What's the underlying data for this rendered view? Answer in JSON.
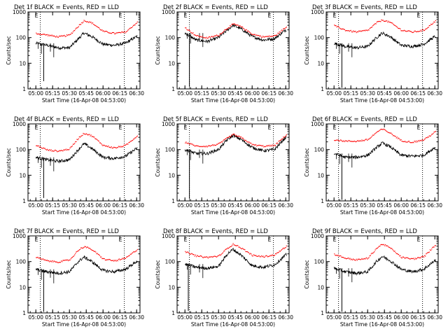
{
  "figure": {
    "xlabel": "Start Time (16-Apr-08 04:53:00)",
    "ylabel": "Counts/sec",
    "x_ticks": [
      "05:00",
      "05:15",
      "05:30",
      "05:45",
      "06:00",
      "06:15",
      "06:30"
    ],
    "y_ticks": [
      "1",
      "10",
      "100",
      "1000"
    ],
    "marker_labels": [
      "E",
      "E"
    ],
    "colors": {
      "events": "#000000",
      "lld": "#ff0000"
    }
  },
  "chart_data": [
    {
      "type": "line",
      "title": "Det 1f BLACK = Events, RED = LLD",
      "x": [
        "05:00",
        "05:10",
        "05:20",
        "05:30",
        "05:38",
        "05:43",
        "05:50",
        "06:00",
        "06:10",
        "06:20",
        "06:30"
      ],
      "series": [
        {
          "name": "Events",
          "values": [
            60,
            50,
            40,
            40,
            90,
            150,
            110,
            55,
            50,
            60,
            110
          ]
        },
        {
          "name": "LLD",
          "values": [
            150,
            130,
            110,
            130,
            300,
            480,
            380,
            180,
            150,
            170,
            400
          ]
        }
      ],
      "ylim": [
        1,
        1000
      ],
      "yscale": "log",
      "xlim": [
        "04:53",
        "06:33"
      ],
      "dotted_vlines": [
        "05:04",
        "06:19"
      ],
      "dropouts": [
        {
          "x": "05:07",
          "y": 2
        }
      ]
    },
    {
      "type": "line",
      "title": "Det 2f BLACK = Events, RED = LLD",
      "x": [
        "05:00",
        "05:10",
        "05:20",
        "05:30",
        "05:38",
        "05:43",
        "05:50",
        "06:00",
        "06:10",
        "06:20",
        "06:30"
      ],
      "series": [
        {
          "name": "Events",
          "values": [
            150,
            80,
            70,
            100,
            200,
            300,
            220,
            110,
            80,
            90,
            200
          ]
        },
        {
          "name": "LLD",
          "values": [
            250,
            120,
            100,
            130,
            250,
            350,
            270,
            140,
            110,
            120,
            260
          ]
        }
      ],
      "ylim": [
        1,
        1000
      ],
      "yscale": "log",
      "xlim": [
        "04:53",
        "06:33"
      ],
      "dotted_vlines": [
        "05:04",
        "06:19"
      ],
      "dropouts": [
        {
          "x": "05:04",
          "y": 1.2
        }
      ]
    },
    {
      "type": "line",
      "title": "Det 3f BLACK = Events, RED = LLD",
      "x": [
        "05:00",
        "05:10",
        "05:20",
        "05:30",
        "05:38",
        "05:43",
        "05:50",
        "06:00",
        "06:10",
        "06:20",
        "06:30"
      ],
      "series": [
        {
          "name": "Events",
          "values": [
            60,
            45,
            40,
            45,
            100,
            150,
            110,
            50,
            45,
            55,
            110
          ]
        },
        {
          "name": "LLD",
          "values": [
            300,
            200,
            170,
            200,
            400,
            500,
            400,
            200,
            170,
            200,
            450
          ]
        }
      ],
      "ylim": [
        1,
        1000
      ],
      "yscale": "log",
      "xlim": [
        "04:53",
        "06:33"
      ],
      "dotted_vlines": [
        "05:04",
        "06:19"
      ],
      "dropouts": [
        {
          "x": "05:07",
          "y": 1.1
        }
      ]
    },
    {
      "type": "line",
      "title": "Det 4f BLACK = Events, RED = LLD",
      "x": [
        "05:00",
        "05:10",
        "05:20",
        "05:30",
        "05:38",
        "05:43",
        "05:50",
        "06:00",
        "06:10",
        "06:20",
        "06:30"
      ],
      "series": [
        {
          "name": "Events",
          "values": [
            50,
            40,
            35,
            40,
            100,
            170,
            110,
            50,
            45,
            55,
            110
          ]
        },
        {
          "name": "LLD",
          "values": [
            150,
            100,
            90,
            110,
            300,
            450,
            350,
            150,
            120,
            150,
            350
          ]
        }
      ],
      "ylim": [
        1,
        1000
      ],
      "yscale": "log",
      "xlim": [
        "04:53",
        "06:33"
      ],
      "dotted_vlines": [
        "05:04",
        "06:19"
      ],
      "dropouts": [
        {
          "x": "05:07",
          "y": 1.3
        }
      ]
    },
    {
      "type": "line",
      "title": "Det 5f BLACK = Events, RED = LLD",
      "x": [
        "05:00",
        "05:10",
        "05:20",
        "05:30",
        "05:38",
        "05:43",
        "05:50",
        "06:00",
        "06:10",
        "06:20",
        "06:30"
      ],
      "series": [
        {
          "name": "Events",
          "values": [
            100,
            70,
            70,
            100,
            250,
            350,
            250,
            120,
            90,
            100,
            300
          ]
        },
        {
          "name": "LLD",
          "values": [
            200,
            140,
            140,
            170,
            300,
            400,
            300,
            160,
            140,
            150,
            380
          ]
        }
      ],
      "ylim": [
        1,
        1000
      ],
      "yscale": "log",
      "xlim": [
        "04:53",
        "06:33"
      ],
      "dotted_vlines": [
        "05:04",
        "06:19"
      ],
      "dropouts": [
        {
          "x": "05:04",
          "y": 1.2
        }
      ]
    },
    {
      "type": "line",
      "title": "Det 6f BLACK = Events, RED = LLD",
      "x": [
        "05:00",
        "05:10",
        "05:20",
        "05:30",
        "05:38",
        "05:43",
        "05:50",
        "06:00",
        "06:10",
        "06:20",
        "06:30"
      ],
      "series": [
        {
          "name": "Events",
          "values": [
            70,
            50,
            50,
            60,
            120,
            180,
            130,
            60,
            55,
            60,
            120
          ]
        },
        {
          "name": "LLD",
          "values": [
            250,
            220,
            220,
            250,
            500,
            650,
            450,
            230,
            200,
            250,
            500
          ]
        }
      ],
      "ylim": [
        1,
        1000
      ],
      "yscale": "log",
      "xlim": [
        "04:53",
        "06:33"
      ],
      "dotted_vlines": [
        "05:04",
        "06:19"
      ],
      "dropouts": [
        {
          "x": "05:07",
          "y": 1.1
        }
      ]
    },
    {
      "type": "line",
      "title": "Det 7f BLACK = Events, RED = LLD",
      "x": [
        "05:00",
        "05:10",
        "05:20",
        "05:30",
        "05:38",
        "05:43",
        "05:50",
        "06:00",
        "06:10",
        "06:20",
        "06:30"
      ],
      "series": [
        {
          "name": "Events",
          "values": [
            50,
            40,
            35,
            40,
            100,
            150,
            100,
            45,
            40,
            50,
            100
          ]
        },
        {
          "name": "LLD",
          "values": [
            150,
            110,
            100,
            120,
            300,
            400,
            300,
            130,
            110,
            140,
            300
          ]
        }
      ],
      "ylim": [
        1,
        1000
      ],
      "yscale": "log",
      "xlim": [
        "04:53",
        "06:33"
      ],
      "dotted_vlines": [
        "05:04",
        "06:19"
      ],
      "dropouts": [
        {
          "x": "05:07",
          "y": 1.1
        }
      ]
    },
    {
      "type": "line",
      "title": "Det 8f BLACK = Events, RED = LLD",
      "x": [
        "05:00",
        "05:10",
        "05:20",
        "05:30",
        "05:38",
        "05:43",
        "05:50",
        "06:00",
        "06:10",
        "06:20",
        "06:30"
      ],
      "series": [
        {
          "name": "Events",
          "values": [
            80,
            60,
            55,
            65,
            200,
            300,
            180,
            70,
            60,
            75,
            180
          ]
        },
        {
          "name": "LLD",
          "values": [
            250,
            170,
            150,
            170,
            350,
            500,
            350,
            180,
            160,
            190,
            400
          ]
        }
      ],
      "ylim": [
        1,
        1000
      ],
      "yscale": "log",
      "xlim": [
        "04:53",
        "06:33"
      ],
      "dotted_vlines": [
        "05:04",
        "06:19"
      ],
      "dropouts": [
        {
          "x": "05:03",
          "y": 1.2
        }
      ]
    },
    {
      "type": "line",
      "title": "Det 9f BLACK = Events, RED = LLD",
      "x": [
        "05:00",
        "05:10",
        "05:20",
        "05:30",
        "05:38",
        "05:43",
        "05:50",
        "06:00",
        "06:10",
        "06:20",
        "06:30"
      ],
      "series": [
        {
          "name": "Events",
          "values": [
            55,
            40,
            35,
            40,
            100,
            160,
            110,
            50,
            40,
            50,
            110
          ]
        },
        {
          "name": "LLD",
          "values": [
            200,
            140,
            120,
            140,
            350,
            500,
            350,
            150,
            130,
            160,
            450
          ]
        }
      ],
      "ylim": [
        1,
        1000
      ],
      "yscale": "log",
      "xlim": [
        "04:53",
        "06:33"
      ],
      "dotted_vlines": [
        "05:04",
        "06:19"
      ],
      "dropouts": [
        {
          "x": "05:07",
          "y": 1.1
        }
      ]
    }
  ]
}
